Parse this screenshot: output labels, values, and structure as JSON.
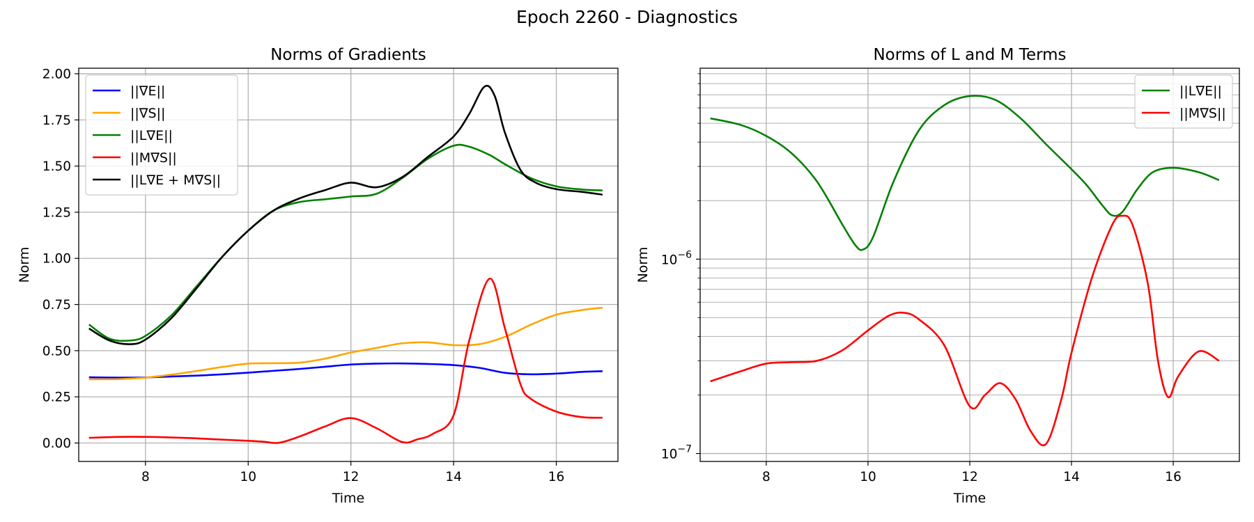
{
  "figure": {
    "suptitle": "Epoch 2260 - Diagnostics"
  },
  "chart_data": [
    {
      "type": "line",
      "title": "Norms of Gradients",
      "xlabel": "Time",
      "ylabel": "Norm",
      "xlim": [
        6.7,
        17.2
      ],
      "ylim": [
        -0.1,
        2.03
      ],
      "xticks": [
        8,
        10,
        12,
        14,
        16
      ],
      "xtick_labels": [
        "8",
        "10",
        "12",
        "14",
        "16"
      ],
      "yticks": [
        0.0,
        0.25,
        0.5,
        0.75,
        1.0,
        1.25,
        1.5,
        1.75,
        2.0
      ],
      "ytick_labels": [
        "0.00",
        "0.25",
        "0.50",
        "0.75",
        "1.00",
        "1.25",
        "1.50",
        "1.75",
        "2.00"
      ],
      "grid": true,
      "legend_position": "upper-left",
      "series": [
        {
          "name": "||∇E||",
          "color": "#0000ff",
          "x": [
            6.9,
            7.5,
            8.0,
            8.5,
            9.0,
            9.5,
            10.0,
            10.5,
            11.0,
            11.5,
            12.0,
            12.5,
            13.0,
            13.5,
            14.0,
            14.5,
            15.0,
            15.5,
            16.0,
            16.5,
            16.9
          ],
          "y": [
            0.356,
            0.354,
            0.355,
            0.36,
            0.365,
            0.372,
            0.381,
            0.391,
            0.401,
            0.413,
            0.425,
            0.43,
            0.431,
            0.428,
            0.422,
            0.407,
            0.38,
            0.372,
            0.376,
            0.385,
            0.389
          ]
        },
        {
          "name": "||∇S||",
          "color": "#ffa500",
          "x": [
            6.9,
            7.5,
            8.0,
            8.5,
            9.0,
            9.5,
            10.0,
            10.5,
            11.0,
            11.5,
            12.0,
            12.5,
            13.0,
            13.5,
            14.0,
            14.5,
            15.0,
            15.5,
            16.0,
            16.5,
            16.9
          ],
          "y": [
            0.345,
            0.346,
            0.354,
            0.37,
            0.39,
            0.412,
            0.43,
            0.432,
            0.435,
            0.457,
            0.49,
            0.515,
            0.54,
            0.545,
            0.53,
            0.535,
            0.575,
            0.64,
            0.695,
            0.72,
            0.733
          ]
        },
        {
          "name": "||L∇E||",
          "color": "#008000",
          "x": [
            6.9,
            7.3,
            7.7,
            8.0,
            8.5,
            9.0,
            9.5,
            10.0,
            10.5,
            11.0,
            11.5,
            12.0,
            12.5,
            13.0,
            13.5,
            14.0,
            14.3,
            14.7,
            15.0,
            15.5,
            16.0,
            16.5,
            16.9
          ],
          "y": [
            0.642,
            0.565,
            0.555,
            0.58,
            0.69,
            0.85,
            1.01,
            1.15,
            1.26,
            1.305,
            1.32,
            1.335,
            1.35,
            1.435,
            1.54,
            1.61,
            1.605,
            1.56,
            1.51,
            1.435,
            1.39,
            1.373,
            1.368
          ]
        },
        {
          "name": "||M∇S||",
          "color": "#ff0000",
          "x": [
            6.9,
            7.5,
            8.0,
            8.5,
            9.0,
            9.5,
            10.0,
            10.3,
            10.6,
            11.0,
            11.5,
            12.0,
            12.5,
            13.0,
            13.3,
            13.6,
            14.0,
            14.3,
            14.7,
            15.0,
            15.3,
            15.5,
            16.0,
            16.5,
            16.9
          ],
          "y": [
            0.028,
            0.033,
            0.033,
            0.03,
            0.025,
            0.018,
            0.012,
            0.007,
            0.001,
            0.035,
            0.09,
            0.135,
            0.08,
            0.005,
            0.02,
            0.05,
            0.15,
            0.55,
            0.89,
            0.62,
            0.32,
            0.24,
            0.17,
            0.14,
            0.137
          ]
        },
        {
          "name": "||L∇E + M∇S||",
          "color": "#000000",
          "x": [
            6.9,
            7.3,
            7.7,
            8.0,
            8.5,
            9.0,
            9.5,
            10.0,
            10.5,
            11.0,
            11.5,
            12.0,
            12.5,
            13.0,
            13.5,
            14.0,
            14.3,
            14.6,
            14.8,
            15.0,
            15.3,
            15.6,
            16.0,
            16.5,
            16.9
          ],
          "y": [
            0.62,
            0.555,
            0.535,
            0.56,
            0.675,
            0.84,
            1.01,
            1.15,
            1.26,
            1.325,
            1.37,
            1.41,
            1.385,
            1.44,
            1.55,
            1.66,
            1.78,
            1.93,
            1.88,
            1.68,
            1.48,
            1.41,
            1.375,
            1.36,
            1.345
          ]
        }
      ]
    },
    {
      "type": "line",
      "title": "Norms of L and M Terms",
      "xlabel": "Time",
      "ylabel": "Norm",
      "xlim": [
        6.7,
        17.3
      ],
      "yscale": "log",
      "ylim": [
        9.1e-08,
        9.6e-06
      ],
      "xticks": [
        8,
        10,
        12,
        14,
        16
      ],
      "xtick_labels": [
        "8",
        "10",
        "12",
        "14",
        "16"
      ],
      "yticks_major": [
        1e-07,
        1e-06
      ],
      "ytick_labels": [
        {
          "base": "10",
          "exp": "−7"
        },
        {
          "base": "10",
          "exp": "−6"
        }
      ],
      "grid": true,
      "legend_position": "upper-right",
      "series": [
        {
          "name": "||L∇E||",
          "color": "#008000",
          "x": [
            6.9,
            7.5,
            8.0,
            8.5,
            9.0,
            9.5,
            9.75,
            9.9,
            10.1,
            10.5,
            11.0,
            11.5,
            12.0,
            12.5,
            13.0,
            13.5,
            14.0,
            14.3,
            14.6,
            14.8,
            15.0,
            15.3,
            15.6,
            16.0,
            16.5,
            16.9
          ],
          "y": [
            5.3e-06,
            4.9e-06,
            4.3e-06,
            3.5e-06,
            2.5e-06,
            1.5e-06,
            1.18e-06,
            1.12e-06,
            1.3e-06,
            2.5e-06,
            4.6e-06,
            6.2e-06,
            6.9e-06,
            6.6e-06,
            5.3e-06,
            3.9e-06,
            2.9e-06,
            2.4e-06,
            1.9e-06,
            1.68e-06,
            1.75e-06,
            2.3e-06,
            2.8e-06,
            2.95e-06,
            2.8e-06,
            2.55e-06
          ]
        },
        {
          "name": "||M∇S||",
          "color": "#ff0000",
          "x": [
            6.9,
            7.5,
            8.0,
            8.5,
            9.0,
            9.5,
            10.0,
            10.4,
            10.7,
            11.0,
            11.5,
            12.0,
            12.3,
            12.6,
            12.9,
            13.2,
            13.5,
            13.8,
            14.0,
            14.4,
            14.8,
            15.0,
            15.2,
            15.5,
            15.7,
            15.9,
            16.1,
            16.5,
            16.9
          ],
          "y": [
            2.35e-07,
            2.65e-07,
            2.9e-07,
            2.95e-07,
            3e-07,
            3.4e-07,
            4.3e-07,
            5.1e-07,
            5.3e-07,
            4.9e-07,
            3.6e-07,
            1.75e-07,
            2e-07,
            2.3e-07,
            1.9e-07,
            1.3e-07,
            1.12e-07,
            1.9e-07,
            3.3e-07,
            8e-07,
            1.5e-06,
            1.67e-06,
            1.5e-06,
            7.5e-07,
            3e-07,
            1.95e-07,
            2.5e-07,
            3.35e-07,
            3e-07
          ]
        }
      ]
    }
  ]
}
